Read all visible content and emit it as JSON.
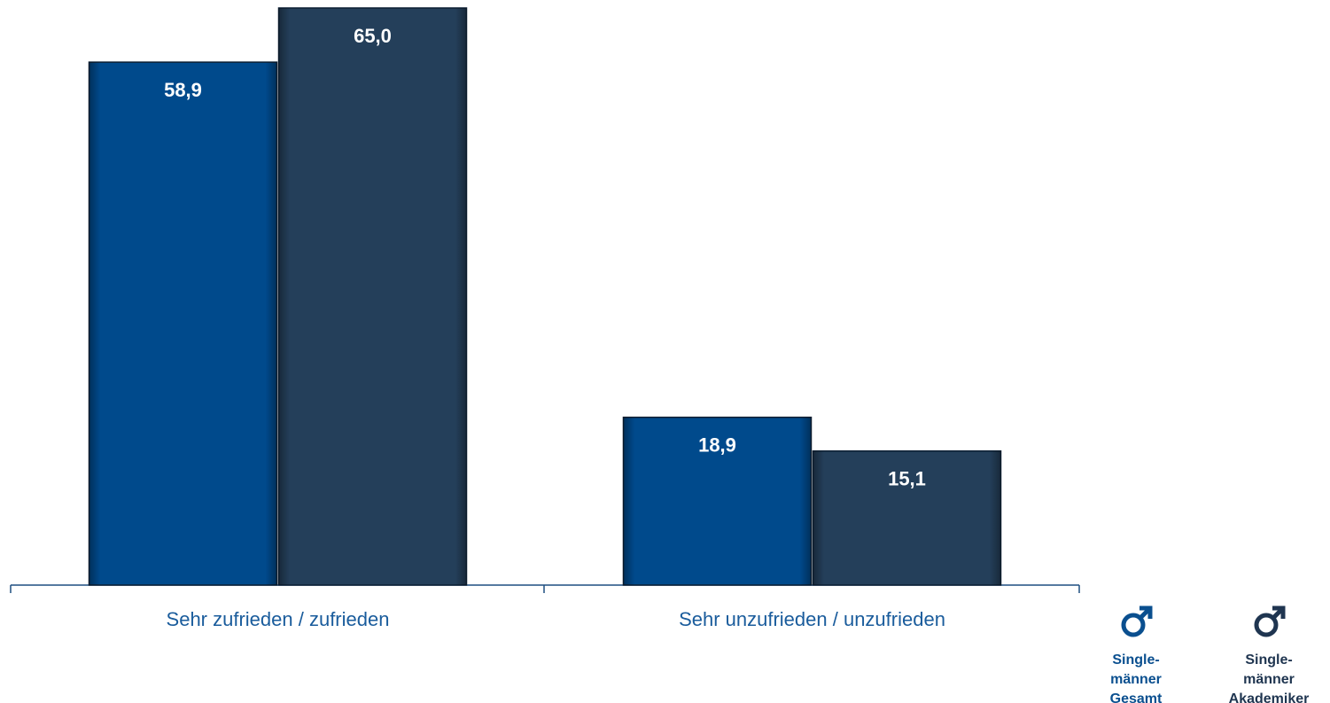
{
  "chart_data": {
    "type": "bar",
    "categories": [
      "Sehr zufrieden / zufrieden",
      "Sehr unzufrieden / unzufrieden"
    ],
    "series": [
      {
        "name": "Single-\nmänner\nGesamt",
        "color": "#004a8c",
        "values": [
          58.9,
          18.9
        ],
        "value_labels": [
          "58,9",
          "18,9"
        ]
      },
      {
        "name": "Single-\nmänner\nAkademiker",
        "color": "#243f5a",
        "values": [
          65.0,
          15.1
        ],
        "value_labels": [
          "65,0",
          "15,1"
        ]
      }
    ],
    "ylim": [
      0,
      65
    ],
    "grid": false,
    "legend": "right"
  }
}
